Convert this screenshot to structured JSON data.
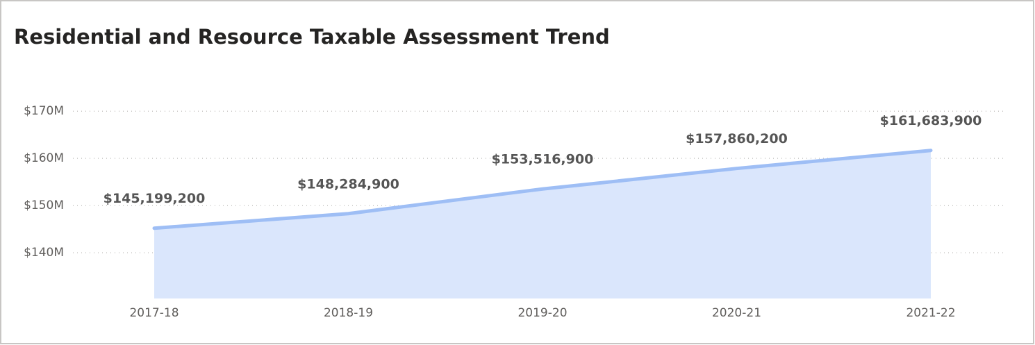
{
  "chart_data": {
    "type": "area",
    "title": "Residential and Resource Taxable Assessment Trend",
    "categories": [
      "2017-18",
      "2018-19",
      "2019-20",
      "2020-21",
      "2021-22"
    ],
    "values": [
      145199200,
      148284900,
      153516900,
      157860200,
      161683900
    ],
    "value_labels": [
      "$145,199,200",
      "$148,284,900",
      "$153,516,900",
      "$157,860,200",
      "$161,683,900"
    ],
    "color": "#9ebef5",
    "area_color": "#dae6fc",
    "ylim": [
      130300000,
      171500000
    ],
    "yticks": [
      {
        "value": 140000000,
        "label": "$140M"
      },
      {
        "value": 150000000,
        "label": "$150M"
      },
      {
        "value": 160000000,
        "label": "$160M"
      },
      {
        "value": 170000000,
        "label": "$170M"
      }
    ],
    "grid": true
  }
}
